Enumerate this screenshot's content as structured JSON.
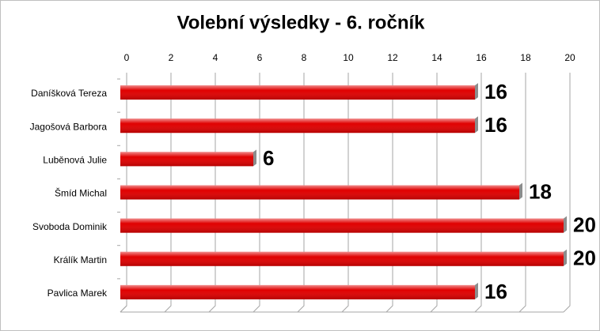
{
  "chart_data": {
    "type": "bar",
    "orientation": "horizontal",
    "title": "Volební výsledky - 6. ročník",
    "categories": [
      "Daníšková Tereza",
      "Jagošová Barbora",
      "Luběnová Julie",
      "Šmíd Michal",
      "Svoboda Dominik",
      "Králík Martin",
      "Pavlica Marek"
    ],
    "values": [
      16,
      16,
      6,
      18,
      20,
      20,
      16
    ],
    "color": "#e00000",
    "xlim": [
      0,
      20
    ],
    "xticks": [
      0,
      2,
      4,
      6,
      8,
      10,
      12,
      14,
      16,
      18,
      20
    ],
    "grid": true
  }
}
